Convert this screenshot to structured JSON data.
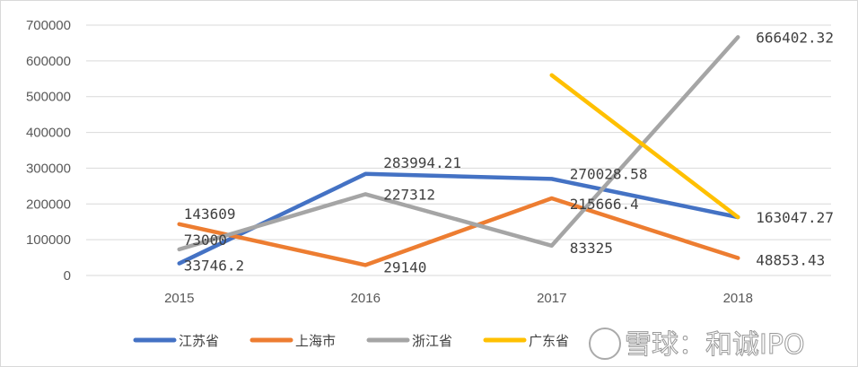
{
  "chart_data": {
    "type": "line",
    "categories": [
      "2015",
      "2016",
      "2017",
      "2018"
    ],
    "ylim": [
      0,
      700000
    ],
    "yticks": [
      "0",
      "100000",
      "200000",
      "300000",
      "400000",
      "500000",
      "600000",
      "700000"
    ],
    "grid": true,
    "legend_position": "bottom",
    "series": [
      {
        "name": "江苏省",
        "color": "#4472C4",
        "values": [
          33746.2,
          283994.21,
          270028.58,
          163047.27
        ],
        "labels": [
          "33746.2",
          "283994.21",
          "270028.58",
          "163047.27"
        ]
      },
      {
        "name": "上海市",
        "color": "#ED7D31",
        "values": [
          143609,
          29140,
          215666.4,
          48853.43
        ],
        "labels": [
          "143609",
          "29140",
          "215666.4",
          "48853.43"
        ]
      },
      {
        "name": "浙江省",
        "color": "#A5A5A5",
        "values": [
          73000,
          227312,
          83325,
          666402.32
        ],
        "labels": [
          "73000",
          "227312",
          "83325",
          "666402.32"
        ]
      },
      {
        "name": "广东省",
        "color": "#FFC000",
        "values": [
          null,
          null,
          560000,
          163000
        ],
        "labels": []
      }
    ]
  },
  "watermark": "雪球：和诚IPO"
}
